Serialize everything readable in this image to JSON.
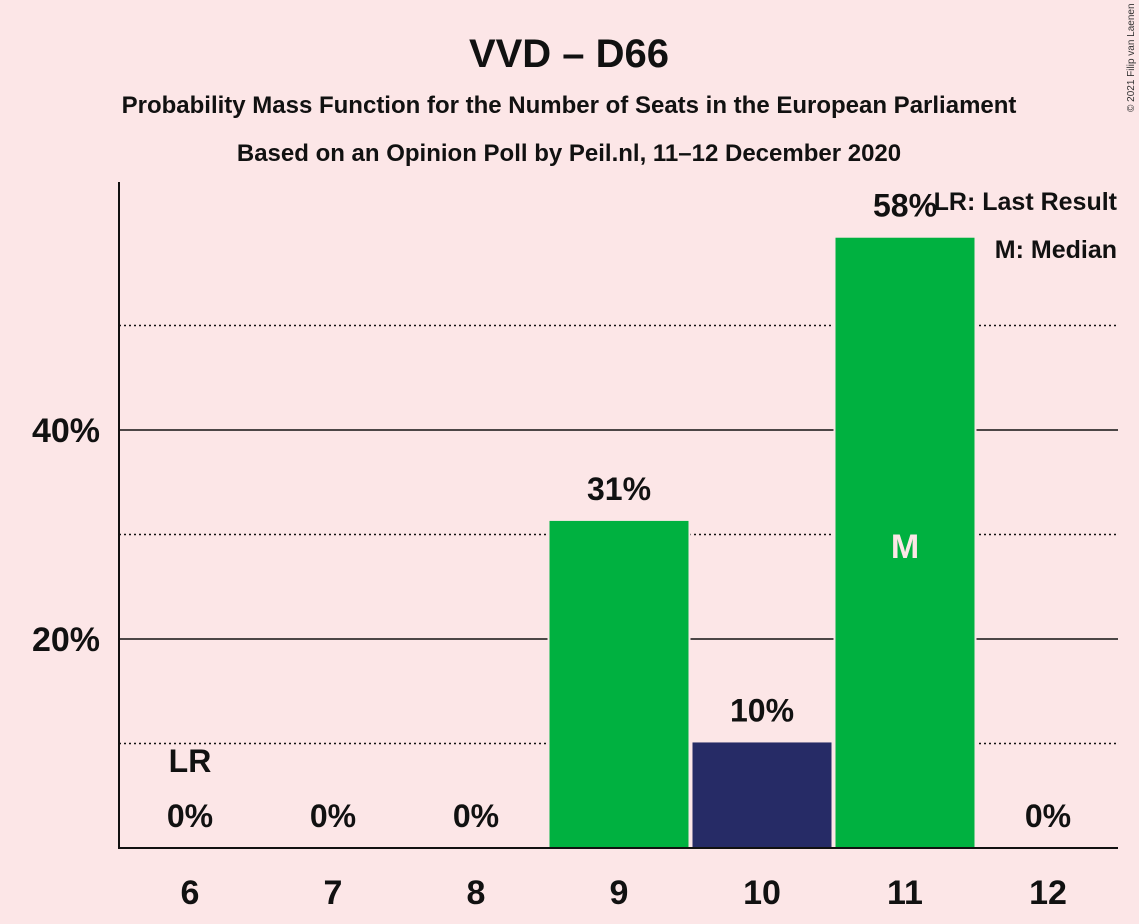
{
  "title": "VVD – D66",
  "subtitle1": "Probability Mass Function for the Number of Seats in the European Parliament",
  "subtitle2": "Based on an Opinion Poll by Peil.nl, 11–12 December 2020",
  "copyright": "© 2021 Filip van Laenen",
  "legend": {
    "lr": "LR: Last Result",
    "median": "M: Median"
  },
  "colors": {
    "background": "#fce6e7",
    "bar_default": "#00b140",
    "bar_last_result_range": "#262b66",
    "text": "#111111"
  },
  "chart_data": {
    "type": "bar",
    "title": "VVD – D66",
    "xlabel": "",
    "ylabel": "",
    "categories": [
      "6",
      "7",
      "8",
      "9",
      "10",
      "11",
      "12"
    ],
    "values": [
      0,
      0,
      0,
      31.3,
      10.1,
      58.4,
      0
    ],
    "value_labels": [
      "0%",
      "0%",
      "0%",
      "31%",
      "10%",
      "58%",
      "0%"
    ],
    "bar_colors": [
      "#00b140",
      "#00b140",
      "#00b140",
      "#00b140",
      "#262b66",
      "#00b140",
      "#00b140"
    ],
    "ylim": [
      0,
      63.5
    ],
    "yticks": [
      20,
      40
    ],
    "ytick_labels": [
      "20%",
      "40%"
    ],
    "minor_gridlines": [
      10,
      30,
      50
    ],
    "last_result_category": "6",
    "last_result_label": "LR",
    "median_category": "11",
    "median_label": "M",
    "legend_position": "top-right"
  }
}
